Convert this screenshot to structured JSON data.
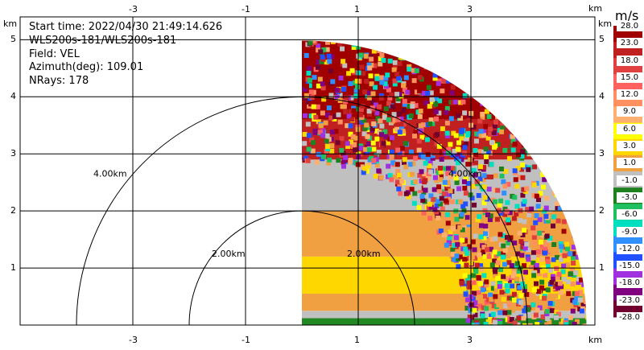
{
  "info": {
    "start_time": "Start time: 2022/04/30 21:49:14.626",
    "instrument": "WLS200s-181/WLS200s-181",
    "field": "Field: VEL",
    "azimuth": "Azimuth(deg): 109.01",
    "nrays": "NRays: 178"
  },
  "axes": {
    "unit_label": "km",
    "x_ticks": [
      "-3",
      "-1",
      "1",
      "3"
    ],
    "y_ticks": [
      "5",
      "4",
      "3",
      "2",
      "1"
    ],
    "x_range": [
      -5,
      5.2
    ],
    "y_range": [
      0,
      5.4
    ]
  },
  "range_rings": [
    "4.00km",
    "2.00km",
    "2.00km",
    "4.00km"
  ],
  "colorbar": {
    "unit": "m/s",
    "ticks": [
      "28.0",
      "23.0",
      "18.0",
      "15.0",
      "12.0",
      "9.0",
      "6.0",
      "3.0",
      "1.0",
      "-1.0",
      "-3.0",
      "-6.0",
      "-9.0",
      "-12.0",
      "-15.0",
      "-18.0",
      "-23.0",
      "-28.0"
    ],
    "colors": [
      "#a00000",
      "#c02020",
      "#e04040",
      "#ff6060",
      "#ff9060",
      "#ffb070",
      "#ffff00",
      "#ffd700",
      "#f0a040",
      "#c0c0c0",
      "#208020",
      "#20c060",
      "#00e0c0",
      "#3090ff",
      "#2050ff",
      "#a030e0",
      "#800080",
      "#700030"
    ]
  }
}
